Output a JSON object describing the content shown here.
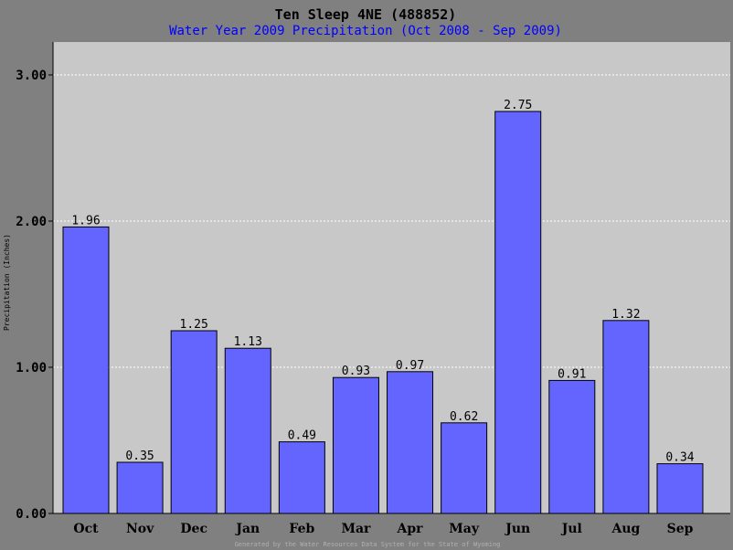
{
  "chart_data": {
    "type": "bar",
    "title": "Ten Sleep 4NE (488852)",
    "subtitle": "Water Year 2009 Precipitation (Oct 2008 - Sep 2009)",
    "xlabel": "",
    "ylabel": "Precipitation (Inches)",
    "categories": [
      "Oct",
      "Nov",
      "Dec",
      "Jan",
      "Feb",
      "Mar",
      "Apr",
      "May",
      "Jun",
      "Jul",
      "Aug",
      "Sep"
    ],
    "values": [
      1.96,
      0.35,
      1.25,
      1.13,
      0.49,
      0.93,
      0.97,
      0.62,
      2.75,
      0.91,
      1.32,
      0.34
    ],
    "data_labels": [
      "1.96",
      "0.35",
      "1.25",
      "1.13",
      "0.49",
      "0.93",
      "0.97",
      "0.62",
      "2.75",
      "0.91",
      "1.32",
      "0.34"
    ],
    "yticks": [
      0,
      1,
      2,
      3
    ],
    "ytick_labels": [
      "0.00",
      "1.00",
      "2.00",
      "3.00"
    ],
    "ylim": [
      0,
      3.0
    ],
    "grid": true,
    "legend": "none",
    "bar_color": "#6464ff",
    "plot_background": "#c8c8c8",
    "page_background": "#808080",
    "title_color": "#000000",
    "subtitle_color": "#0000ff"
  },
  "footer": "Generated by the Water Resources Data System for the State of Wyoming"
}
